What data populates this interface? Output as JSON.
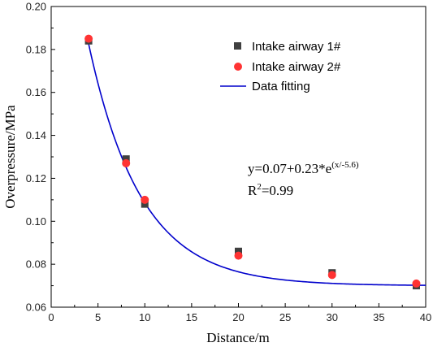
{
  "chart_data": {
    "type": "scatter",
    "xlabel": "Distance/m",
    "ylabel": "Overpressure/MPa",
    "xlim": [
      0,
      40
    ],
    "ylim": [
      0.06,
      0.2
    ],
    "x_ticks": [
      0,
      5,
      10,
      15,
      20,
      25,
      30,
      35,
      40
    ],
    "y_ticks": [
      0.06,
      0.08,
      0.1,
      0.12,
      0.14,
      0.16,
      0.18,
      0.2
    ],
    "x_tick_labels": [
      "0",
      "5",
      "10",
      "15",
      "20",
      "25",
      "30",
      "35",
      "40"
    ],
    "y_tick_labels": [
      "0.06",
      "0.08",
      "0.10",
      "0.12",
      "0.14",
      "0.16",
      "0.18",
      "0.20"
    ],
    "grid": false,
    "legend_position": "top-right",
    "series": [
      {
        "name": "Intake airway 1#",
        "marker": "square",
        "color": "#404040",
        "x": [
          4,
          8,
          10,
          20,
          30,
          39
        ],
        "y": [
          0.184,
          0.129,
          0.108,
          0.086,
          0.076,
          0.07
        ]
      },
      {
        "name": "Intake airway 2#",
        "marker": "circle",
        "color": "#ff3333",
        "x": [
          4,
          8,
          10,
          20,
          30,
          39
        ],
        "y": [
          0.185,
          0.127,
          0.11,
          0.084,
          0.075,
          0.071
        ]
      },
      {
        "name": "Data fitting",
        "marker": "line",
        "color": "#0000cc",
        "fit": {
          "y0": 0.07,
          "A": 0.23,
          "t": -5.6,
          "x_range": [
            4,
            40
          ]
        }
      }
    ],
    "annotation": {
      "equation_main": "y=0.07+0.23*e",
      "equation_exp": "(x/-5.6)",
      "r2_prefix": "R",
      "r2_sup": "2",
      "r2_value": "=0.99"
    }
  }
}
